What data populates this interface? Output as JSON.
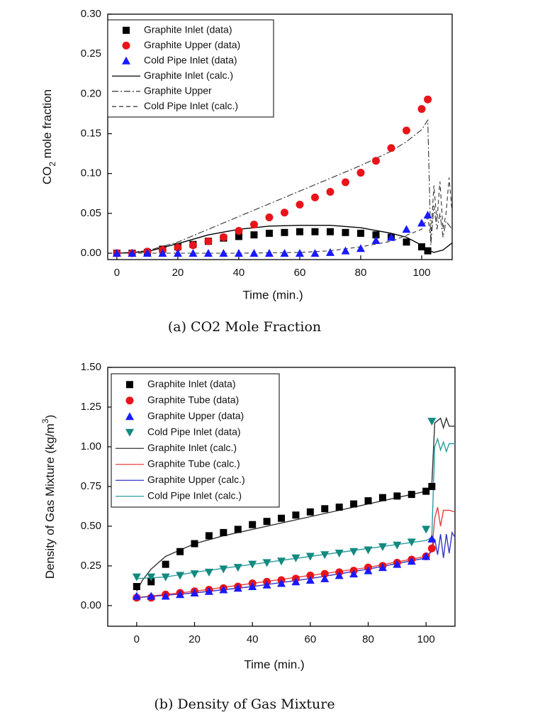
{
  "chart_data": [
    {
      "type": "line",
      "caption": "(a) CO2 Mole Fraction",
      "xlabel": "Time (min.)",
      "ylabel": [
        "CO",
        "2",
        " mole fraction"
      ],
      "xlim": [
        -3,
        110
      ],
      "ylim": [
        -0.008,
        0.3
      ],
      "xticks": [
        0,
        20,
        40,
        60,
        80,
        100
      ],
      "yticks": [
        {
          "value": 0,
          "label": "0.00"
        },
        0.05,
        {
          "value": 0.1,
          "label": "0.10"
        },
        0.15,
        {
          "value": 0.2,
          "label": "0.20"
        },
        0.25,
        {
          "value": 0.3,
          "label": "0.30"
        }
      ],
      "legend": "upper left",
      "series": [
        {
          "name": "Graphite Inlet (data)",
          "color": "#000000",
          "marker": "square",
          "x": [
            0,
            5,
            10,
            15,
            20,
            25,
            30,
            35,
            40,
            45,
            50,
            55,
            60,
            65,
            70,
            75,
            80,
            85,
            90,
            95,
            100,
            102
          ],
          "values": [
            0,
            0,
            0.001,
            0.005,
            0.008,
            0.011,
            0.015,
            0.019,
            0.021,
            0.023,
            0.025,
            0.026,
            0.027,
            0.027,
            0.027,
            0.026,
            0.025,
            0.023,
            0.02,
            0.014,
            0.008,
            0.003
          ]
        },
        {
          "name": "Graphite Upper (data)",
          "color": "#e8141a",
          "marker": "circle",
          "x": [
            0,
            5,
            10,
            15,
            20,
            25,
            30,
            35,
            40,
            45,
            50,
            55,
            60,
            65,
            70,
            75,
            80,
            85,
            90,
            95,
            100,
            102
          ],
          "values": [
            0,
            0,
            0.002,
            0.004,
            0.007,
            0.01,
            0.015,
            0.02,
            0.028,
            0.036,
            0.045,
            0.051,
            0.061,
            0.07,
            0.077,
            0.089,
            0.101,
            0.116,
            0.132,
            0.154,
            0.181,
            0.193
          ]
        },
        {
          "name": "Cold Pipe Inlet (data)",
          "color": "#1a1aff",
          "marker": "triangle",
          "x": [
            0,
            5,
            10,
            15,
            20,
            25,
            30,
            35,
            40,
            45,
            50,
            55,
            60,
            65,
            70,
            75,
            80,
            85,
            90,
            95,
            100,
            102
          ],
          "values": [
            0,
            0,
            0,
            0,
            0,
            0,
            0,
            0,
            0,
            0,
            0,
            0,
            0,
            0,
            0.001,
            0.003,
            0.006,
            0.016,
            0.02,
            0.03,
            0.038,
            0.048
          ]
        },
        {
          "name": "Graphite Inlet (calc.)",
          "color": "#000000",
          "linestyle": "solid",
          "x": [
            0,
            10,
            20,
            30,
            40,
            50,
            60,
            70,
            80,
            90,
            95,
            100,
            102,
            104,
            107,
            110
          ],
          "values": [
            0,
            0.002,
            0.012,
            0.023,
            0.03,
            0.034,
            0.035,
            0.035,
            0.032,
            0.025,
            0.02,
            0.01,
            0.004,
            0.001,
            0.004,
            0.013
          ]
        },
        {
          "name": "Graphite Upper",
          "color": "#333333",
          "linestyle": "dashdot",
          "x": [
            0,
            10,
            20,
            30,
            40,
            50,
            60,
            70,
            80,
            90,
            95,
            100,
            102,
            103,
            104,
            105,
            106,
            107,
            108,
            110
          ],
          "values": [
            0,
            0.003,
            0.014,
            0.03,
            0.046,
            0.062,
            0.078,
            0.094,
            0.11,
            0.128,
            0.14,
            0.155,
            0.167,
            0.01,
            0.06,
            0.03,
            0.05,
            0.02,
            0.04,
            0.03
          ]
        },
        {
          "name": "Cold Pipe Inlet (calc.)",
          "color": "#333333",
          "linestyle": "dash",
          "x": [
            0,
            20,
            40,
            60,
            70,
            80,
            90,
            100,
            102,
            103,
            104,
            105,
            106,
            107,
            108,
            109,
            110
          ],
          "values": [
            0,
            0,
            0,
            0.001,
            0.003,
            0.008,
            0.015,
            0.03,
            0.045,
            0.02,
            0.085,
            0.04,
            0.09,
            0.03,
            0.05,
            0.095,
            0.05
          ]
        }
      ]
    },
    {
      "type": "line",
      "caption": "(b) Density of Gas Mixture",
      "xlabel": "Time (min.)",
      "ylabel": [
        "Density of Gas Mixture (kg/m",
        "3",
        ")"
      ],
      "xlim": [
        -10,
        110
      ],
      "ylim": [
        -0.13,
        1.5
      ],
      "xticks": [
        0,
        20,
        40,
        60,
        80,
        100
      ],
      "yticks": [
        {
          "value": 0,
          "label": "0.00"
        },
        0.25,
        {
          "value": 0.5,
          "label": "0.50"
        },
        0.75,
        {
          "value": 1,
          "label": "1.00"
        },
        1.25,
        {
          "value": 1.5,
          "label": "1.50"
        }
      ],
      "legend": "upper left",
      "series": [
        {
          "name": "Graphite Inlet (data)",
          "color": "#000000",
          "marker": "square",
          "x": [
            0,
            5,
            10,
            15,
            20,
            25,
            30,
            35,
            40,
            45,
            50,
            55,
            60,
            65,
            70,
            75,
            80,
            85,
            90,
            95,
            100,
            102
          ],
          "values": [
            0.12,
            0.15,
            0.26,
            0.34,
            0.39,
            0.44,
            0.46,
            0.48,
            0.51,
            0.53,
            0.55,
            0.57,
            0.59,
            0.61,
            0.62,
            0.64,
            0.66,
            0.68,
            0.69,
            0.7,
            0.72,
            0.75
          ]
        },
        {
          "name": "Graphite Tube (data)",
          "color": "#e8141a",
          "marker": "circle",
          "x": [
            0,
            5,
            10,
            15,
            20,
            25,
            30,
            35,
            40,
            45,
            50,
            55,
            60,
            65,
            70,
            75,
            80,
            85,
            90,
            95,
            100,
            102
          ],
          "values": [
            0.05,
            0.05,
            0.07,
            0.08,
            0.09,
            0.1,
            0.11,
            0.12,
            0.14,
            0.15,
            0.16,
            0.17,
            0.19,
            0.2,
            0.21,
            0.22,
            0.24,
            0.25,
            0.27,
            0.29,
            0.31,
            0.36
          ]
        },
        {
          "name": "Graphite Upper (data)",
          "color": "#1a1aff",
          "marker": "triangle",
          "x": [
            0,
            5,
            10,
            15,
            20,
            25,
            30,
            35,
            40,
            45,
            50,
            55,
            60,
            65,
            70,
            75,
            80,
            85,
            90,
            95,
            100,
            102
          ],
          "values": [
            0.06,
            0.06,
            0.06,
            0.07,
            0.08,
            0.09,
            0.1,
            0.11,
            0.12,
            0.13,
            0.14,
            0.15,
            0.16,
            0.17,
            0.19,
            0.2,
            0.22,
            0.24,
            0.26,
            0.28,
            0.31,
            0.42
          ]
        },
        {
          "name": "Cold Pipe Inlet (data)",
          "color": "#138a80",
          "marker": "triangle-down",
          "x": [
            0,
            5,
            10,
            15,
            20,
            25,
            30,
            35,
            40,
            45,
            50,
            55,
            60,
            65,
            70,
            75,
            80,
            85,
            90,
            95,
            100,
            102
          ],
          "values": [
            0.18,
            0.18,
            0.18,
            0.19,
            0.2,
            0.21,
            0.23,
            0.24,
            0.26,
            0.27,
            0.28,
            0.3,
            0.31,
            0.32,
            0.33,
            0.34,
            0.35,
            0.37,
            0.38,
            0.4,
            0.48,
            1.16
          ]
        },
        {
          "name": "Graphite Inlet (calc.)",
          "color": "#333333",
          "linestyle": "solid",
          "x": [
            0,
            2,
            5,
            10,
            20,
            30,
            40,
            50,
            60,
            70,
            80,
            90,
            100,
            102,
            103,
            105,
            106,
            107,
            108,
            110
          ],
          "values": [
            0.09,
            0.16,
            0.23,
            0.31,
            0.39,
            0.44,
            0.48,
            0.52,
            0.56,
            0.6,
            0.64,
            0.68,
            0.72,
            0.76,
            1.15,
            1.18,
            1.12,
            1.18,
            1.13,
            1.13
          ]
        },
        {
          "name": "Graphite Tube (calc.)",
          "color": "#e84040",
          "linestyle": "solid",
          "x": [
            0,
            20,
            40,
            60,
            80,
            100,
            102,
            103,
            104,
            105,
            106,
            108,
            110
          ],
          "values": [
            0.05,
            0.09,
            0.14,
            0.19,
            0.24,
            0.31,
            0.34,
            0.55,
            0.62,
            0.5,
            0.6,
            0.6,
            0.59
          ]
        },
        {
          "name": "Graphite Upper (calc.)",
          "color": "#3535c8",
          "linestyle": "solid",
          "x": [
            0,
            20,
            40,
            60,
            80,
            100,
            102,
            103,
            104,
            105,
            106,
            107,
            108,
            109,
            110
          ],
          "values": [
            0.05,
            0.08,
            0.12,
            0.17,
            0.23,
            0.3,
            0.35,
            0.42,
            0.32,
            0.45,
            0.3,
            0.45,
            0.33,
            0.46,
            0.43
          ]
        },
        {
          "name": "Cold Pipe Inlet (calc.)",
          "color": "#2a9d9d",
          "linestyle": "solid",
          "x": [
            0,
            10,
            20,
            40,
            60,
            80,
            100,
            102,
            103,
            104,
            105,
            106,
            107,
            108,
            110
          ],
          "values": [
            0.17,
            0.18,
            0.21,
            0.26,
            0.31,
            0.36,
            0.41,
            0.43,
            1.0,
            1.05,
            0.98,
            1.03,
            0.97,
            1.02,
            1.02
          ]
        }
      ]
    }
  ]
}
